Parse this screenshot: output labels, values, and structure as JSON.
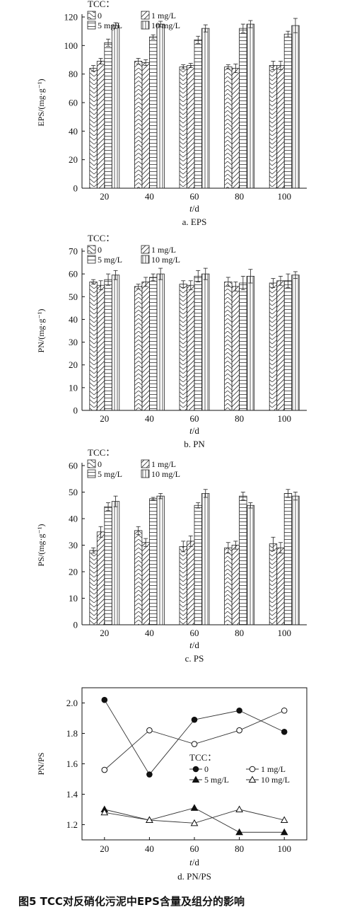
{
  "figure": {
    "caption": "图5   TCC对反硝化污泥中EPS含量及组分的影响",
    "caption_color": "#1f4fa0"
  },
  "chart_data": [
    {
      "type": "bar",
      "panel_label": "a. EPS",
      "ylabel": "EPS/(mg·g⁻¹)",
      "xlabel": "t/d",
      "ylim": [
        0,
        120
      ],
      "yticks": [
        0,
        20,
        40,
        60,
        80,
        100,
        120
      ],
      "categories": [
        "20",
        "40",
        "60",
        "80",
        "100"
      ],
      "legend_title": "TCC：",
      "legend_position": "top-left",
      "series": [
        {
          "name": "0",
          "pattern": "zigzag",
          "values": [
            84,
            89,
            85,
            85,
            86
          ],
          "errors": [
            2,
            2,
            1.5,
            1.5,
            3
          ]
        },
        {
          "name": "1 mg/L",
          "pattern": "diagonal",
          "values": [
            89,
            88,
            86,
            84,
            86
          ],
          "errors": [
            2,
            2,
            1.5,
            3,
            3
          ]
        },
        {
          "name": "5 mg/L",
          "pattern": "horizontal",
          "values": [
            102,
            106,
            104,
            112,
            108
          ],
          "errors": [
            2.5,
            1.5,
            2.5,
            3,
            2
          ]
        },
        {
          "name": "10 mg/L",
          "pattern": "vertical",
          "values": [
            114,
            115,
            112,
            115,
            114
          ],
          "errors": [
            2,
            2,
            2.5,
            2.5,
            5
          ]
        }
      ]
    },
    {
      "type": "bar",
      "panel_label": "b. PN",
      "ylabel": "PN/(mg·g⁻¹)",
      "xlabel": "t/d",
      "ylim": [
        0,
        70
      ],
      "yticks": [
        0,
        10,
        20,
        30,
        40,
        50,
        60,
        70
      ],
      "categories": [
        "20",
        "40",
        "60",
        "80",
        "100"
      ],
      "legend_title": "TCC：",
      "legend_position": "top-left",
      "series": [
        {
          "name": "0",
          "pattern": "zigzag",
          "values": [
            56.5,
            54.5,
            55.5,
            56.5,
            56
          ],
          "errors": [
            1,
            1,
            1.5,
            2,
            2
          ]
        },
        {
          "name": "1 mg/L",
          "pattern": "diagonal",
          "values": [
            55,
            56.5,
            55,
            54.5,
            57
          ],
          "errors": [
            2,
            2,
            2,
            2,
            2
          ]
        },
        {
          "name": "5 mg/L",
          "pattern": "horizontal",
          "values": [
            57.5,
            58.5,
            59,
            56,
            57
          ],
          "errors": [
            2.5,
            1.5,
            2.5,
            3,
            3
          ]
        },
        {
          "name": "10 mg/L",
          "pattern": "vertical",
          "values": [
            59.5,
            60,
            60,
            59,
            59.5
          ],
          "errors": [
            2,
            2.5,
            2.5,
            3,
            1.5
          ]
        }
      ]
    },
    {
      "type": "bar",
      "panel_label": "c. PS",
      "ylabel": "PS/(mg·g⁻¹)",
      "xlabel": "t/d",
      "ylim": [
        0,
        60
      ],
      "yticks": [
        0,
        10,
        20,
        30,
        40,
        50,
        60
      ],
      "categories": [
        "20",
        "40",
        "60",
        "80",
        "100"
      ],
      "legend_title": "TCC：",
      "legend_position": "top-left",
      "series": [
        {
          "name": "0",
          "pattern": "zigzag",
          "values": [
            28,
            35.5,
            29.5,
            29,
            30.5
          ],
          "errors": [
            1,
            1.5,
            2,
            2,
            2.5
          ]
        },
        {
          "name": "1 mg/L",
          "pattern": "diagonal",
          "values": [
            35,
            31,
            31.5,
            30,
            29
          ],
          "errors": [
            2,
            1.5,
            2,
            1.5,
            2
          ]
        },
        {
          "name": "5 mg/L",
          "pattern": "horizontal",
          "values": [
            44.5,
            47.5,
            45,
            48.5,
            49.5
          ],
          "errors": [
            1.5,
            0.5,
            1,
            1.5,
            1.5
          ]
        },
        {
          "name": "10 mg/L",
          "pattern": "vertical",
          "values": [
            46.5,
            48.5,
            49.5,
            45,
            48.5
          ],
          "errors": [
            2,
            1,
            1.5,
            1,
            1.5
          ]
        }
      ]
    },
    {
      "type": "line",
      "panel_label": "d. PN/PS",
      "ylabel": "PN/PS",
      "xlabel": "t/d",
      "xlim": [
        10,
        110
      ],
      "ylim": [
        1.1,
        2.1
      ],
      "xticks": [
        20,
        40,
        60,
        80,
        100
      ],
      "yticks": [
        "1.2",
        "1.4",
        "1.6",
        "1.8",
        "2.0"
      ],
      "x": [
        20,
        40,
        60,
        80,
        100
      ],
      "legend_title": "TCC：",
      "legend_position": "center-right",
      "series": [
        {
          "name": "0",
          "marker": "filled-circle",
          "values": [
            2.02,
            1.53,
            1.89,
            1.95,
            1.81
          ]
        },
        {
          "name": "1 mg/L",
          "marker": "open-circle",
          "values": [
            1.56,
            1.82,
            1.73,
            1.82,
            1.95
          ]
        },
        {
          "name": "5 mg/L",
          "marker": "filled-triangle",
          "values": [
            1.3,
            1.23,
            1.31,
            1.15,
            1.15
          ]
        },
        {
          "name": "10 mg/L",
          "marker": "open-triangle",
          "values": [
            1.28,
            1.23,
            1.21,
            1.3,
            1.23
          ]
        }
      ]
    }
  ]
}
